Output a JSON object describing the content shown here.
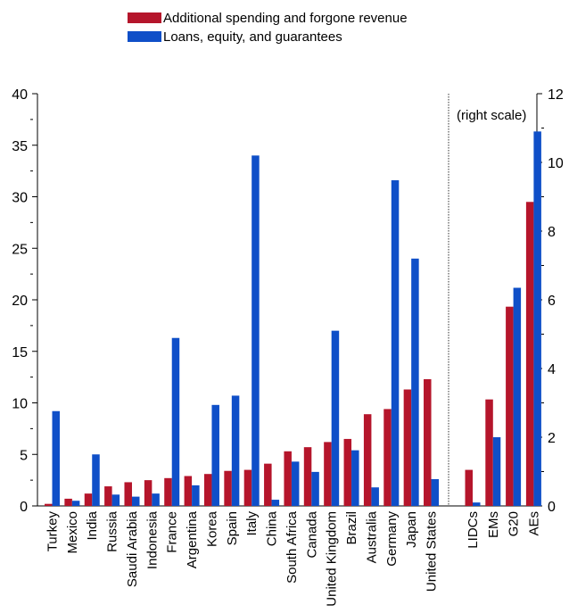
{
  "chart_data": {
    "type": "bar",
    "legend": {
      "position": "top-center",
      "entries": [
        {
          "name": "Additional spending and forgone revenue",
          "color": "#B5152B"
        },
        {
          "name": "Loans, equity, and guarantees",
          "color": "#0F4FC8"
        }
      ]
    },
    "left_axis": {
      "ylim": [
        0,
        40
      ],
      "ticks": [
        0,
        5,
        10,
        15,
        20,
        25,
        30,
        35,
        40
      ]
    },
    "right_axis": {
      "ylim": [
        0,
        12
      ],
      "ticks": [
        0,
        2,
        4,
        6,
        8,
        10,
        12
      ],
      "annotation": "(right scale)"
    },
    "grid": false,
    "countries": {
      "categories": [
        "Turkey",
        "Mexico",
        "India",
        "Russia",
        "Saudi Arabia",
        "Indonesia",
        "France",
        "Argentina",
        "Korea",
        "Spain",
        "Italy",
        "China",
        "South Africa",
        "Canada",
        "United Kingdom",
        "Brazil",
        "Australia",
        "Germany",
        "Japan",
        "United States"
      ],
      "axis": "left",
      "series": [
        {
          "name": "Additional spending and forgone revenue",
          "values": [
            0.2,
            0.7,
            1.2,
            1.9,
            2.3,
            2.5,
            2.7,
            2.9,
            3.1,
            3.4,
            3.5,
            4.1,
            5.3,
            5.7,
            6.2,
            6.5,
            8.9,
            9.4,
            11.3,
            12.3
          ]
        },
        {
          "name": "Loans, equity, and guarantees",
          "values": [
            9.2,
            0.5,
            5.0,
            1.1,
            0.9,
            1.2,
            16.3,
            2.0,
            9.8,
            10.7,
            34.0,
            0.6,
            4.3,
            3.3,
            17.0,
            5.4,
            1.8,
            31.6,
            24.0,
            2.6
          ]
        }
      ]
    },
    "aggregates": {
      "categories": [
        "LIDCs",
        "EMs",
        "G20",
        "AEs"
      ],
      "axis": "right",
      "series": [
        {
          "name": "Additional spending and forgone revenue",
          "values": [
            1.05,
            3.1,
            5.8,
            8.85
          ]
        },
        {
          "name": "Loans, equity, and guarantees",
          "values": [
            0.1,
            2.0,
            6.35,
            10.9
          ]
        }
      ]
    }
  }
}
